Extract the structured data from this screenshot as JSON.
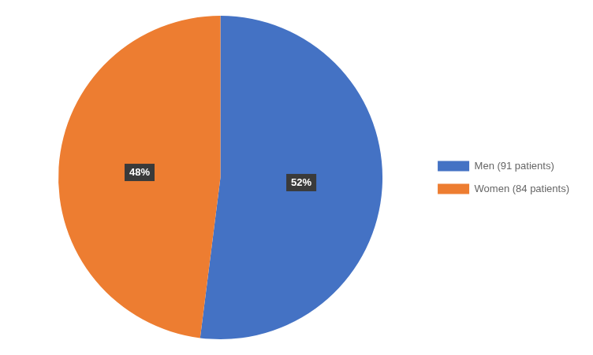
{
  "chart_data": {
    "type": "pie",
    "categories": [
      "Men (91 patients)",
      "Women (84 patients)"
    ],
    "values": [
      52,
      48
    ],
    "value_labels": [
      "52%",
      "48%"
    ],
    "colors": [
      "#4472C4",
      "#ED7D31"
    ],
    "data_labels": true,
    "legend": "right"
  }
}
